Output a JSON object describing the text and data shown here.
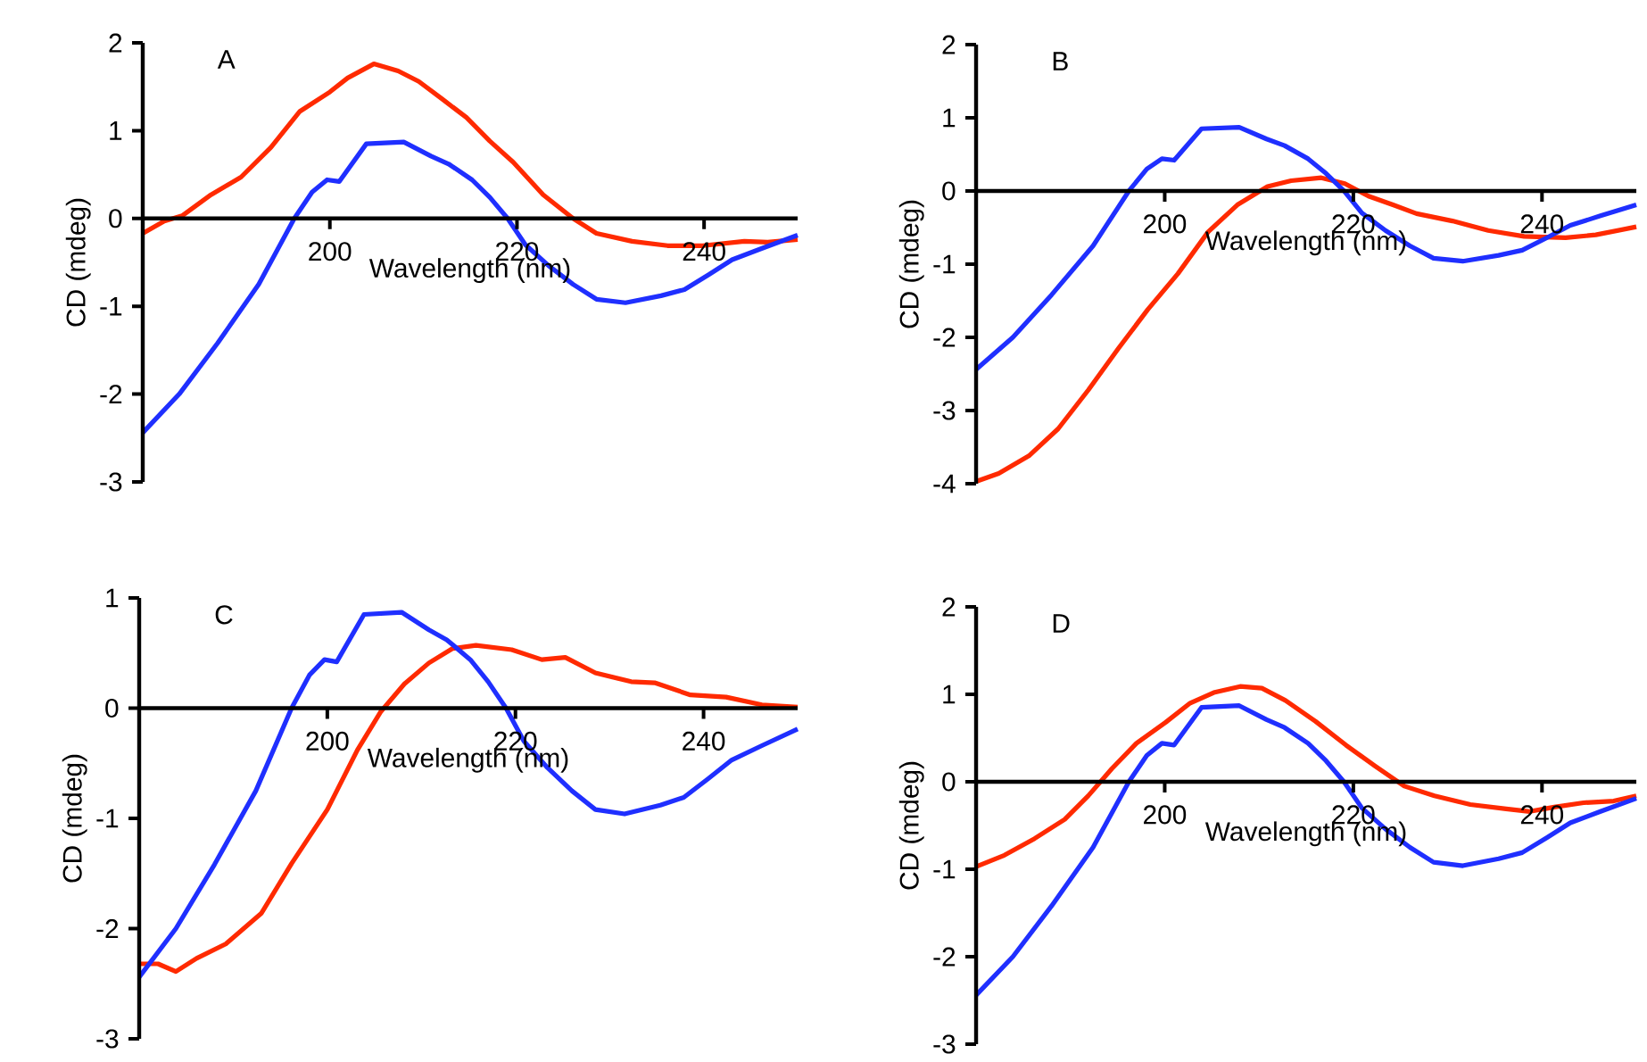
{
  "chart_data": [
    {
      "type": "line",
      "title": "A",
      "xlabel": "Wavelength (nm)",
      "ylabel": "CD (mdeg)",
      "xlim": [
        180,
        250
      ],
      "ylim": [
        -3,
        2
      ],
      "xticks": [
        200,
        220,
        240
      ],
      "yticks": [
        -3,
        -2,
        -1,
        0,
        1,
        2
      ],
      "marker": "none",
      "series": [
        {
          "color": "#ff2a00",
          "x": [
            180,
            182.3,
            184.2,
            187.3,
            190.5,
            193.7,
            196.8,
            200,
            201.9,
            204.7,
            207.3,
            209.5,
            212,
            214.6,
            217.1,
            219.6,
            222.8,
            226,
            228.5,
            232.3,
            236.1,
            239.9,
            244.3,
            246.8,
            250
          ],
          "values": [
            -0.17,
            -0.03,
            0.03,
            0.27,
            0.47,
            0.81,
            1.22,
            1.44,
            1.6,
            1.76,
            1.68,
            1.56,
            1.36,
            1.15,
            0.88,
            0.64,
            0.27,
            0,
            -0.17,
            -0.26,
            -0.31,
            -0.31,
            -0.26,
            -0.27,
            -0.24
          ]
        },
        {
          "color": "#1f2fff",
          "x": [
            180,
            183.9,
            188,
            192.4,
            196.2,
            198.1,
            199.7,
            201,
            203.9,
            207.9,
            210.8,
            212.7,
            215.2,
            217.1,
            219,
            220.9,
            223.4,
            226,
            228.5,
            231.6,
            235.4,
            237.9,
            240.5,
            243,
            246.2,
            250
          ],
          "values": [
            -2.44,
            -2.0,
            -1.42,
            -0.75,
            0,
            0.3,
            0.44,
            0.42,
            0.85,
            0.87,
            0.71,
            0.62,
            0.44,
            0.24,
            0,
            -0.3,
            -0.54,
            -0.75,
            -0.92,
            -0.96,
            -0.88,
            -0.81,
            -0.64,
            -0.47,
            -0.34,
            -0.19
          ]
        }
      ]
    },
    {
      "type": "line",
      "title": "B",
      "xlabel": "Wavelength (nm)",
      "ylabel": "CD (mdeg)",
      "xlim": [
        180,
        250
      ],
      "ylim": [
        -4,
        2
      ],
      "xticks": [
        200,
        220,
        240
      ],
      "yticks": [
        -4,
        -3,
        -2,
        -1,
        0,
        1,
        2
      ],
      "marker": "none",
      "series": [
        {
          "color": "#ff2a00",
          "x": [
            180,
            182.4,
            185.6,
            188.7,
            191.9,
            195.1,
            198.2,
            201.4,
            204.6,
            207.7,
            210.9,
            213.4,
            216.6,
            219.1,
            221.6,
            224.2,
            226.7,
            230.5,
            234.3,
            238.1,
            242.5,
            245.7,
            250
          ],
          "values": [
            -3.97,
            -3.86,
            -3.62,
            -3.25,
            -2.72,
            -2.15,
            -1.62,
            -1.13,
            -0.56,
            -0.19,
            0.06,
            0.14,
            0.18,
            0.1,
            -0.07,
            -0.19,
            -0.31,
            -0.41,
            -0.54,
            -0.62,
            -0.64,
            -0.6,
            -0.49
          ]
        },
        {
          "color": "#1f2fff",
          "x": [
            180,
            183.9,
            188,
            192.4,
            196.2,
            198.1,
            199.7,
            201,
            203.9,
            207.9,
            210.8,
            212.7,
            215.2,
            217.1,
            219,
            220.9,
            223.4,
            226,
            228.5,
            231.6,
            235.4,
            237.9,
            240.5,
            243,
            246.2,
            250
          ],
          "values": [
            -2.44,
            -2.0,
            -1.42,
            -0.75,
            0,
            0.3,
            0.44,
            0.42,
            0.85,
            0.87,
            0.71,
            0.62,
            0.44,
            0.24,
            0,
            -0.3,
            -0.54,
            -0.75,
            -0.92,
            -0.96,
            -0.88,
            -0.81,
            -0.64,
            -0.47,
            -0.34,
            -0.19
          ]
        }
      ]
    },
    {
      "type": "line",
      "title": "C",
      "xlabel": "Wavelength (nm)",
      "ylabel": "CD (mdeg)",
      "xlim": [
        180,
        250
      ],
      "ylim": [
        -3,
        1
      ],
      "xticks": [
        200,
        220,
        240
      ],
      "yticks": [
        -3,
        -2,
        -1,
        0,
        1
      ],
      "marker": "none",
      "series": [
        {
          "color": "#ff2a00",
          "x": [
            180,
            182,
            183.9,
            186.1,
            189.2,
            193,
            196.2,
            200,
            203.2,
            205.7,
            208.2,
            210.8,
            213.3,
            215.8,
            219.6,
            222.8,
            225.3,
            228.5,
            232.3,
            234.8,
            238.6,
            242.4,
            246.2,
            250
          ],
          "values": [
            -2.32,
            -2.32,
            -2.39,
            -2.27,
            -2.14,
            -1.86,
            -1.41,
            -0.92,
            -0.38,
            -0.03,
            0.22,
            0.41,
            0.54,
            0.57,
            0.53,
            0.44,
            0.46,
            0.32,
            0.24,
            0.23,
            0.12,
            0.1,
            0.03,
            0.01
          ]
        },
        {
          "color": "#1f2fff",
          "x": [
            180,
            183.9,
            188,
            192.4,
            196.2,
            198.1,
            199.7,
            201,
            203.9,
            207.9,
            210.8,
            212.7,
            215.2,
            217.1,
            219,
            220.9,
            223.4,
            226,
            228.5,
            231.6,
            235.4,
            237.9,
            240.5,
            243,
            246.2,
            250
          ],
          "values": [
            -2.44,
            -2.0,
            -1.42,
            -0.75,
            0,
            0.3,
            0.44,
            0.42,
            0.85,
            0.87,
            0.71,
            0.62,
            0.44,
            0.24,
            0,
            -0.3,
            -0.54,
            -0.75,
            -0.92,
            -0.96,
            -0.88,
            -0.81,
            -0.64,
            -0.47,
            -0.34,
            -0.19
          ]
        }
      ]
    },
    {
      "type": "line",
      "title": "D",
      "xlabel": "Wavelength (nm)",
      "ylabel": "CD (mdeg)",
      "xlim": [
        180,
        250
      ],
      "ylim": [
        -3,
        2
      ],
      "xticks": [
        200,
        220,
        240
      ],
      "yticks": [
        -3,
        -2,
        -1,
        0,
        1,
        2
      ],
      "marker": "none",
      "series": [
        {
          "color": "#ff2a00",
          "x": [
            180,
            183,
            186.2,
            189.4,
            191.9,
            194.4,
            197,
            200.1,
            202.7,
            205.2,
            208,
            210.3,
            212.8,
            216,
            219.2,
            222.3,
            225.4,
            228.6,
            232.4,
            236.2,
            238.7,
            241.3,
            244.4,
            247.6,
            250
          ],
          "values": [
            -0.97,
            -0.84,
            -0.65,
            -0.43,
            -0.16,
            0.15,
            0.44,
            0.68,
            0.9,
            1.02,
            1.09,
            1.07,
            0.93,
            0.69,
            0.42,
            0.18,
            -0.05,
            -0.16,
            -0.26,
            -0.31,
            -0.34,
            -0.29,
            -0.24,
            -0.22,
            -0.16
          ]
        },
        {
          "color": "#1f2fff",
          "x": [
            180,
            183.9,
            188,
            192.4,
            196.2,
            198.1,
            199.7,
            201,
            203.9,
            207.9,
            210.8,
            212.7,
            215.2,
            217.1,
            219,
            220.9,
            223.4,
            226,
            228.5,
            231.6,
            235.4,
            237.9,
            240.5,
            243,
            246.2,
            250
          ],
          "values": [
            -2.44,
            -2.0,
            -1.42,
            -0.75,
            0,
            0.3,
            0.44,
            0.42,
            0.85,
            0.87,
            0.71,
            0.62,
            0.44,
            0.24,
            0,
            -0.3,
            -0.54,
            -0.75,
            -0.92,
            -0.96,
            -0.88,
            -0.81,
            -0.64,
            -0.47,
            -0.34,
            -0.19
          ]
        }
      ]
    }
  ]
}
